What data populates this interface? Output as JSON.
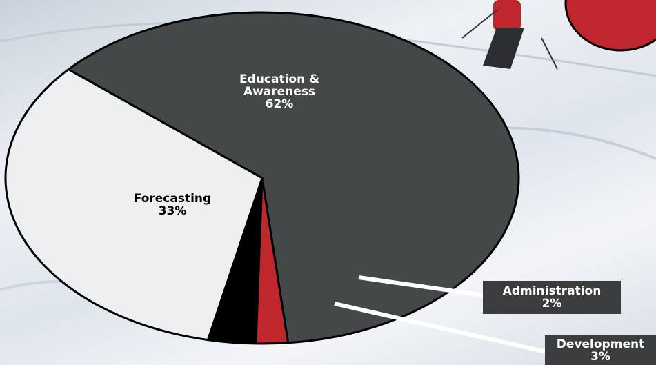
{
  "chart_data": {
    "type": "pie",
    "categories": [
      "Education & Awareness",
      "Administration",
      "Development",
      "Forecasting"
    ],
    "values": [
      62,
      2,
      3,
      33
    ],
    "value_labels": [
      "62%",
      "2%",
      "3%",
      "33%"
    ],
    "colors": [
      "#454849",
      "#c0272d",
      "#000000",
      "#eeeff0"
    ]
  }
}
